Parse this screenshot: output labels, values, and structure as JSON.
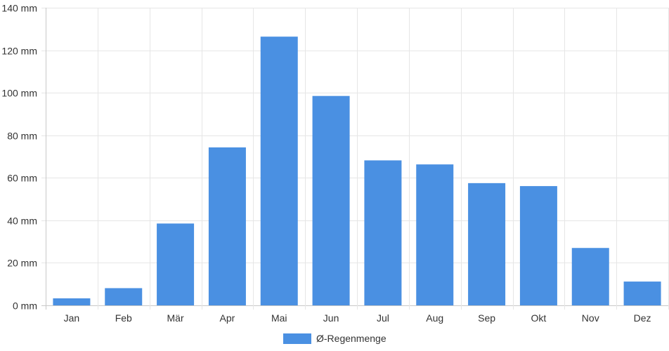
{
  "chart_data": {
    "type": "bar",
    "categories": [
      "Jan",
      "Feb",
      "Mär",
      "Apr",
      "Mai",
      "Jun",
      "Jul",
      "Aug",
      "Sep",
      "Okt",
      "Nov",
      "Dez"
    ],
    "series": [
      {
        "name": "Ø-Regenmenge",
        "color": "#4a90e2",
        "values": [
          3.3,
          8.1,
          38.5,
          74.3,
          126.4,
          98.5,
          68.2,
          66.3,
          57.5,
          56.1,
          27.0,
          11.2
        ]
      }
    ],
    "ylim": [
      0,
      140
    ],
    "y_ticks": [
      0,
      20,
      40,
      60,
      80,
      100,
      120,
      140
    ],
    "y_unit": "mm",
    "grid": true,
    "legend_position": "bottom-center"
  }
}
